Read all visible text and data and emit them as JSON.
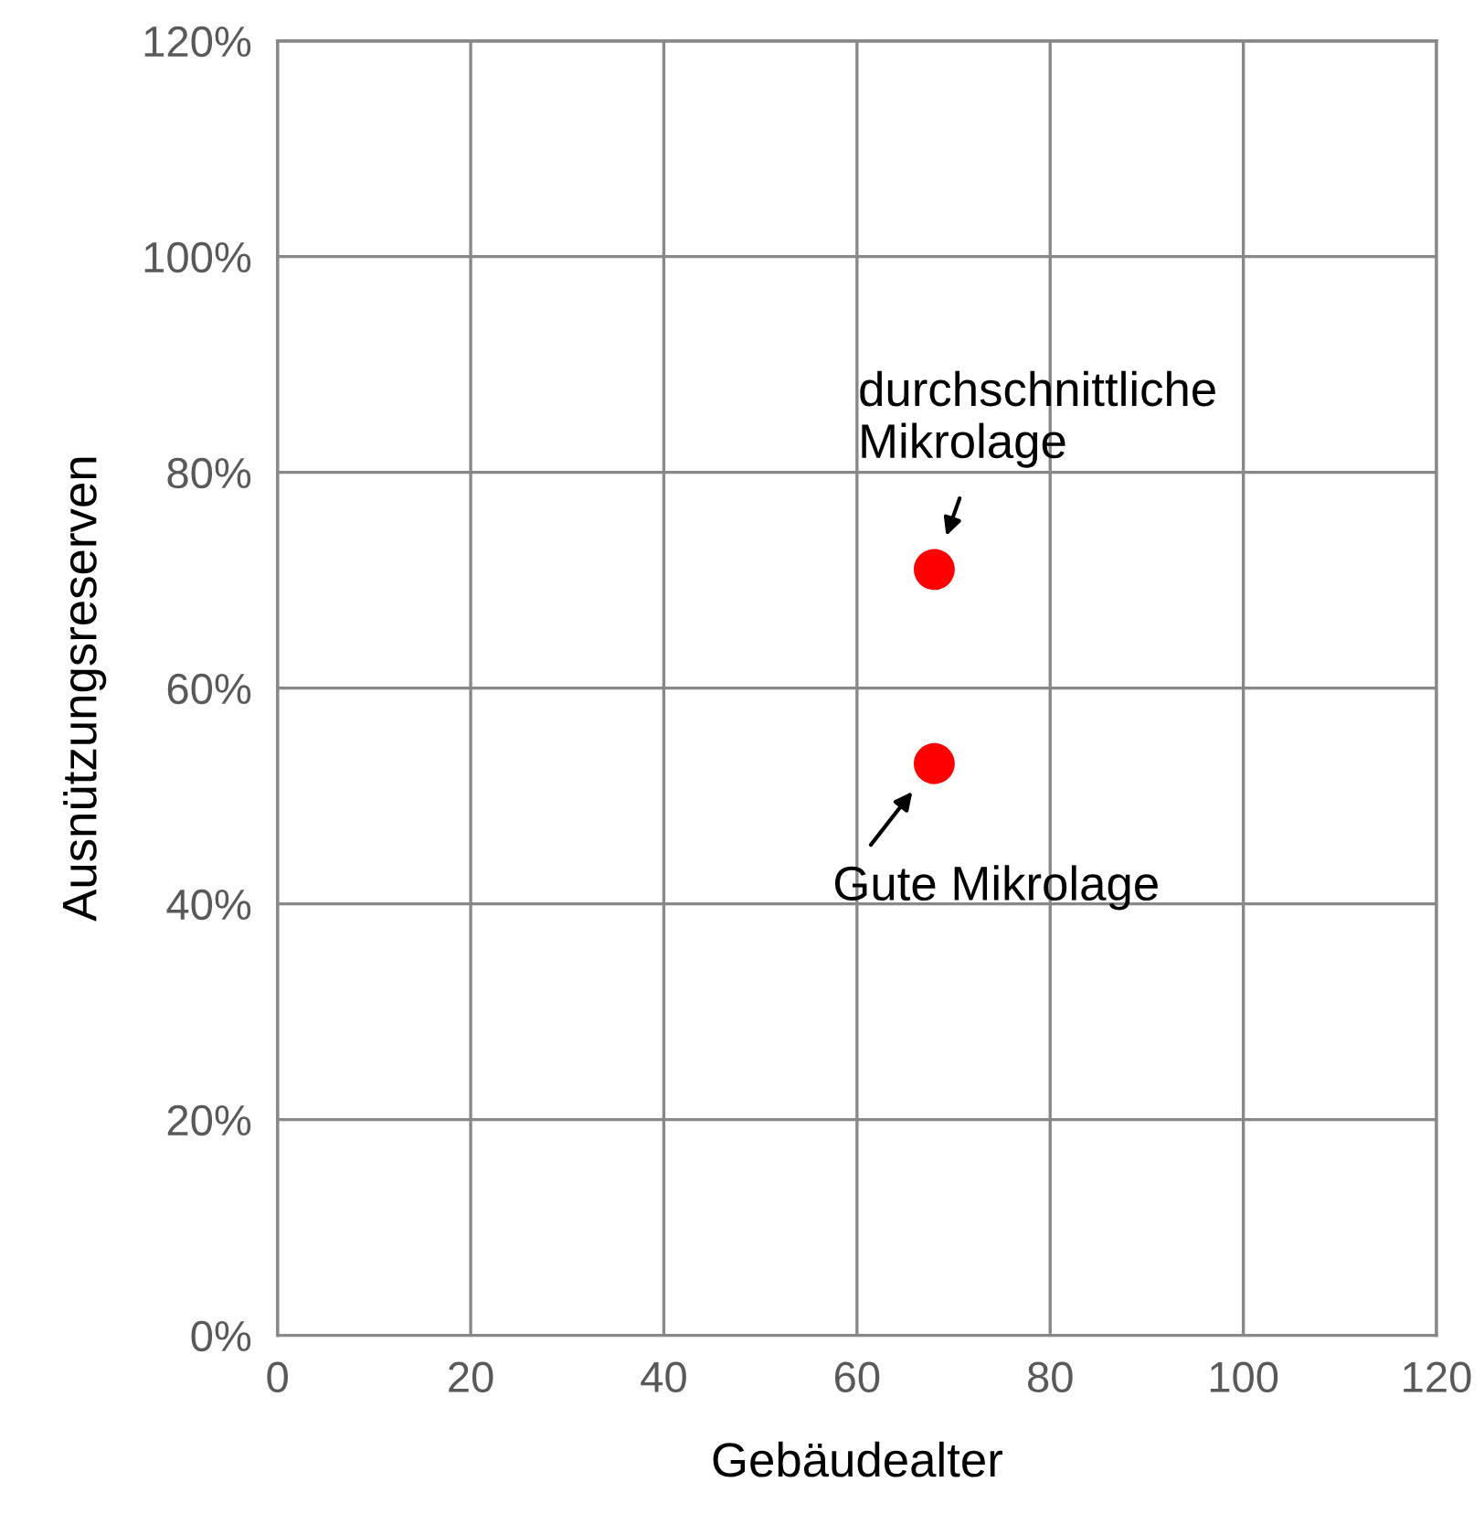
{
  "chart_data": {
    "type": "scatter",
    "xlabel": "Gebäudealter",
    "ylabel": "Ausnützungsreserven",
    "x": [
      68,
      68
    ],
    "values": [
      71,
      53
    ],
    "color": "#ff0000",
    "marker": "circle",
    "xlim": [
      0,
      120
    ],
    "xticks": [
      0,
      20,
      40,
      60,
      80,
      100,
      120
    ],
    "ylim": [
      0,
      120
    ],
    "yticks": [
      {
        "value": 0,
        "label": "0%"
      },
      {
        "value": 20,
        "label": "20%"
      },
      {
        "value": 40,
        "label": "40%"
      },
      {
        "value": 60,
        "label": "60%"
      },
      {
        "value": 80,
        "label": "80%"
      },
      {
        "value": 100,
        "label": "100%"
      },
      {
        "value": 120,
        "label": "120%"
      }
    ],
    "grid": true,
    "legend": false,
    "annotations": [
      {
        "text": "durchschnittliche\nMikrolage",
        "x": 68,
        "y": 71
      },
      {
        "text": "Gute Mikrolage",
        "x": 68,
        "y": 53
      }
    ]
  }
}
